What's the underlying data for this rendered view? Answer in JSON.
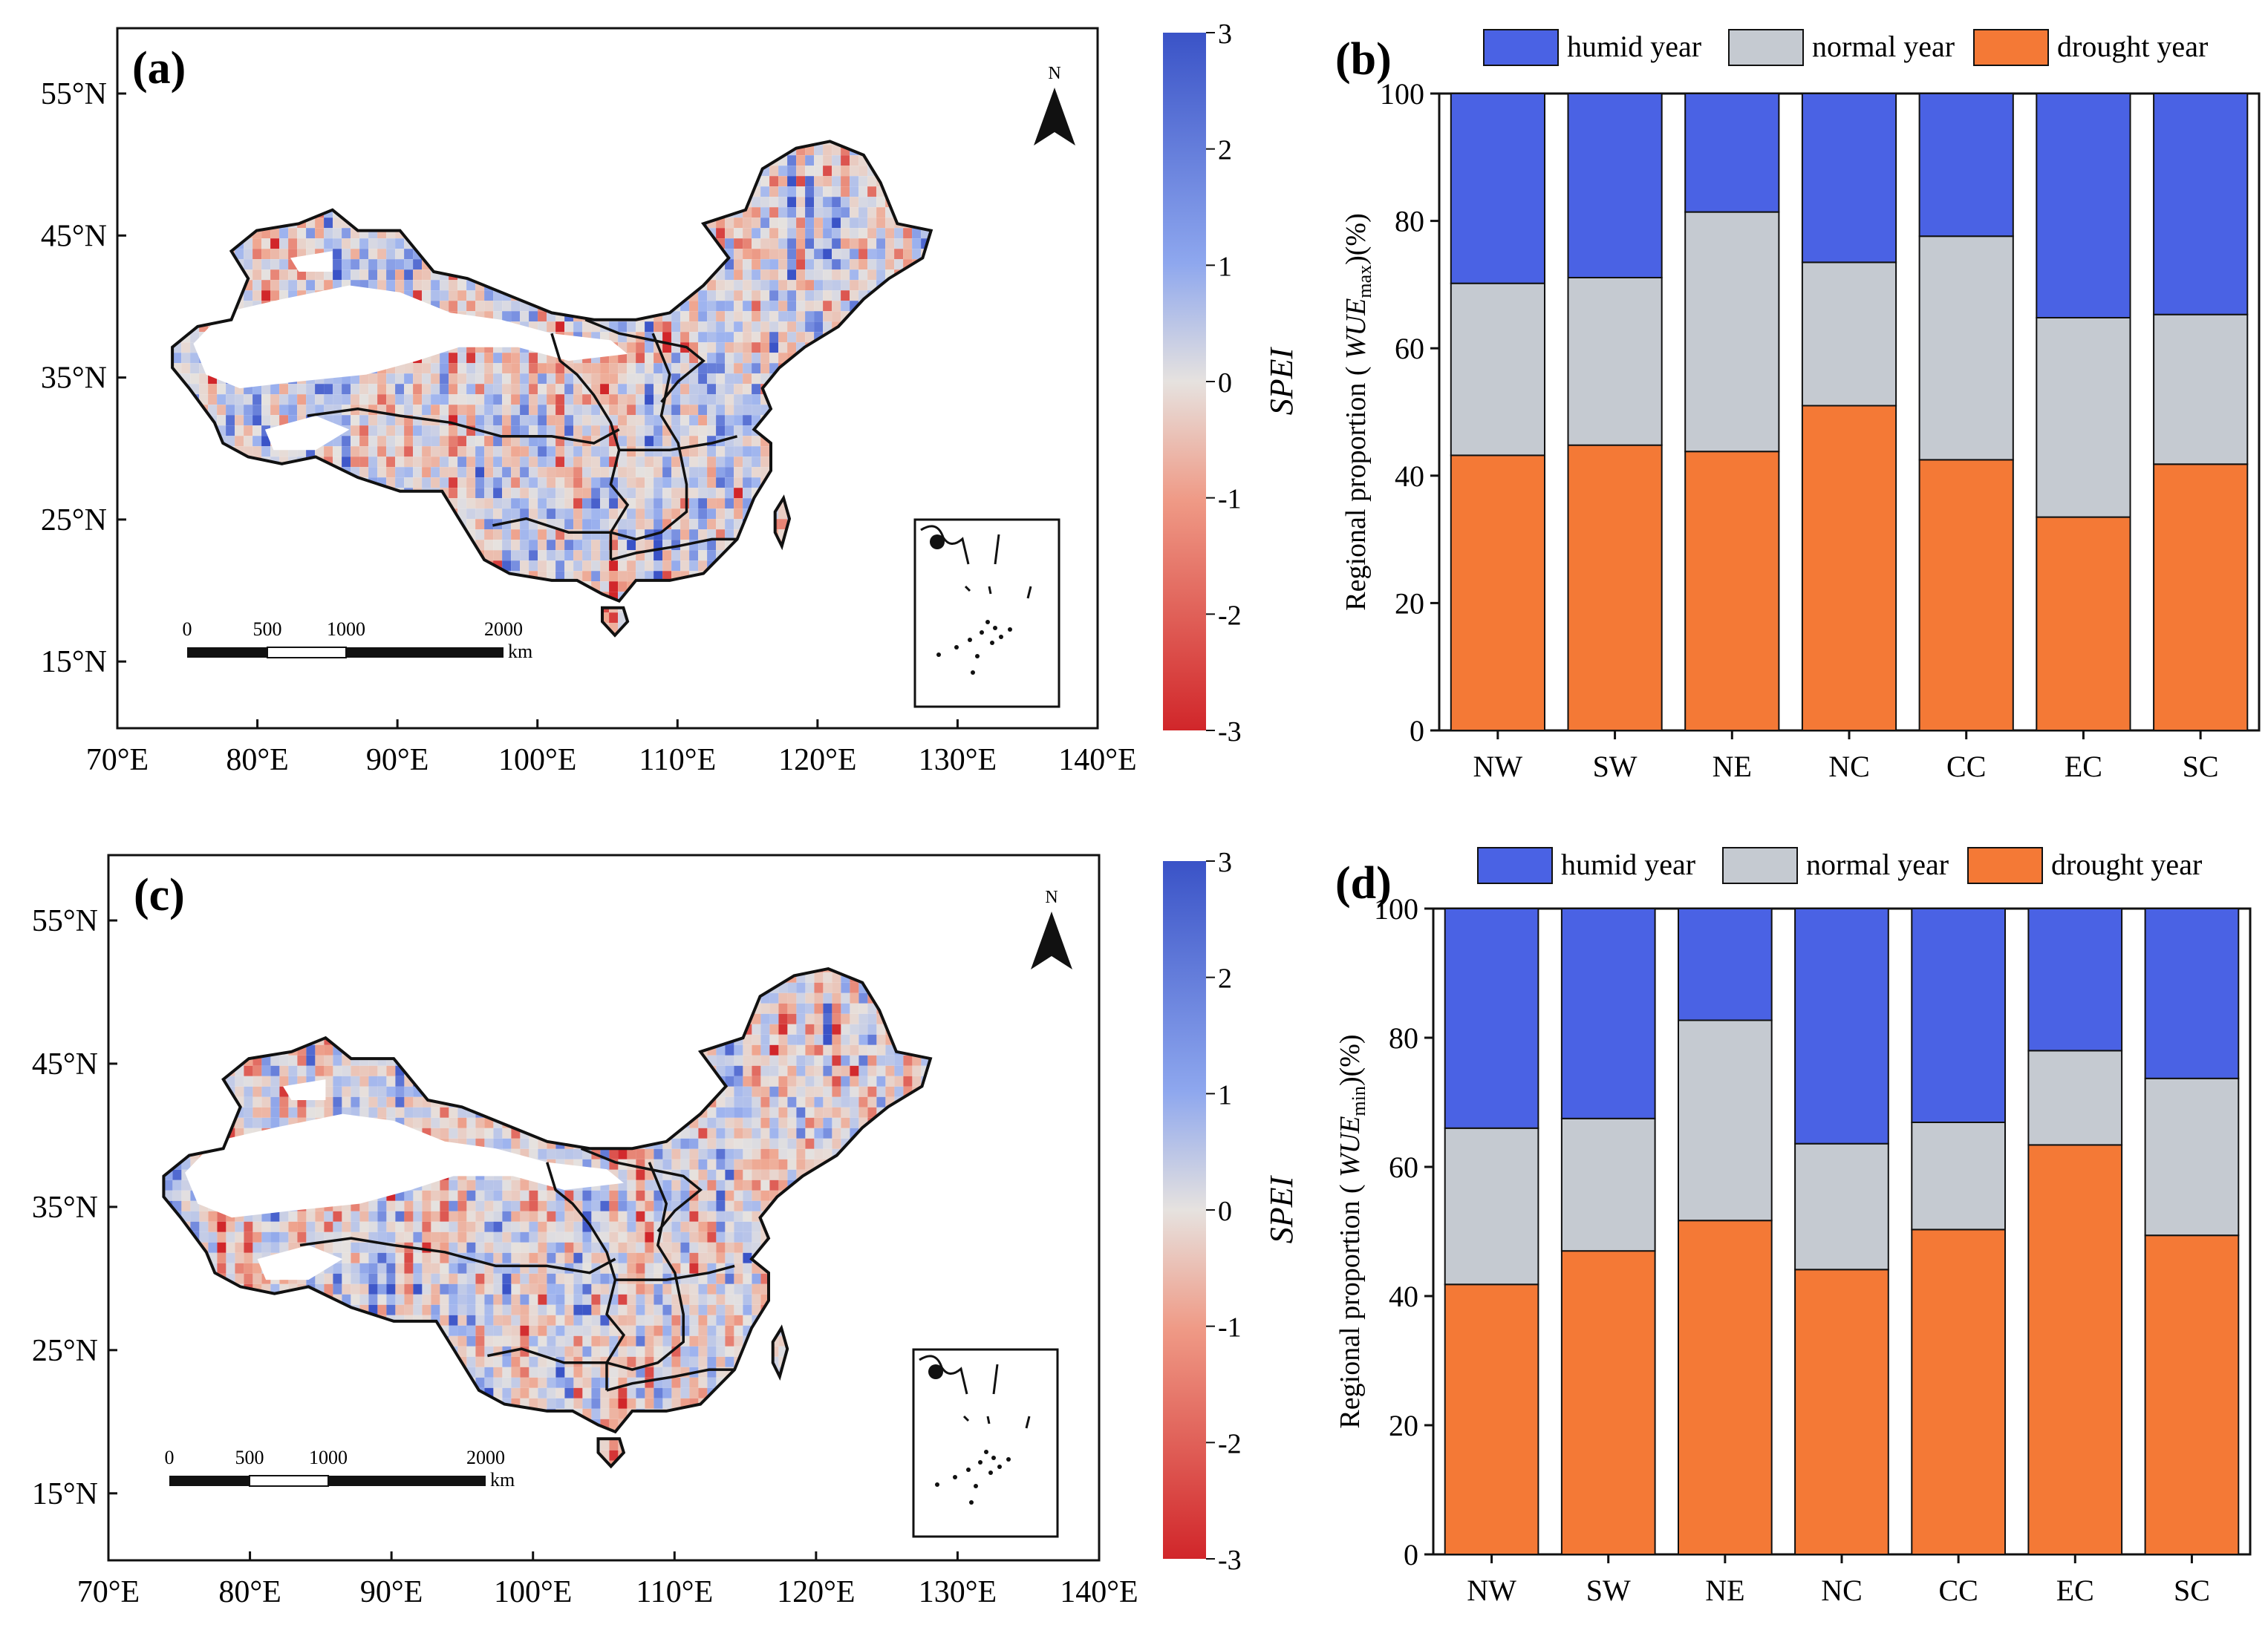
{
  "colors": {
    "humid": "#4a62e4",
    "normal": "#c5cad1",
    "drought": "#f47936",
    "spei_top": "#3a53c7",
    "spei_mid": "#e6e2df",
    "spei_bottom": "#d1262a",
    "china_fill": "#ffffff",
    "outline": "#111111"
  },
  "maps": [
    {
      "label": "(a)",
      "lat_ticks": [
        "55°N",
        "45°N",
        "35°N",
        "25°N",
        "15°N"
      ],
      "lon_ticks": [
        "70°E",
        "80°E",
        "90°E",
        "100°E",
        "110°E",
        "120°E",
        "130°E",
        "140°E"
      ],
      "north": "N",
      "scalebar": {
        "labels": [
          "0",
          "500",
          "1000",
          "2000"
        ],
        "unit": "km"
      },
      "colorbar": {
        "title": "SPEI",
        "ticks": [
          "3",
          "2",
          "1",
          "0",
          "-1",
          "-2",
          "-3"
        ]
      },
      "seed": 11,
      "humid_bias": 0.05
    },
    {
      "label": "(c)",
      "lat_ticks": [
        "55°N",
        "45°N",
        "35°N",
        "25°N",
        "15°N"
      ],
      "lon_ticks": [
        "70°E",
        "80°E",
        "90°E",
        "100°E",
        "110°E",
        "120°E",
        "130°E",
        "140°E"
      ],
      "north": "N",
      "scalebar": {
        "labels": [
          "0",
          "500",
          "1000",
          "2000"
        ],
        "unit": "km"
      },
      "colorbar": {
        "title": "SPEI",
        "ticks": [
          "3",
          "2",
          "1",
          "0",
          "-1",
          "-2",
          "-3"
        ]
      },
      "seed": 29,
      "humid_bias": -0.02
    }
  ],
  "chart_data": [
    {
      "type": "bar",
      "stacked": true,
      "label": "(b)",
      "ylabel_prefix": "Regional proportion ( ",
      "ylabel_var": "WUE",
      "ylabel_sub": "max",
      "ylabel_suffix": ")(%)",
      "ylim": [
        0,
        100
      ],
      "yticks": [
        0,
        20,
        40,
        60,
        80,
        100
      ],
      "categories": [
        "NW",
        "SW",
        "NE",
        "NC",
        "CC",
        "EC",
        "SC"
      ],
      "legend": [
        "humid year",
        "normal year",
        "drought year"
      ],
      "series": [
        {
          "name": "drought year",
          "values": [
            43.2,
            44.8,
            43.8,
            51.0,
            42.5,
            33.5,
            41.8
          ]
        },
        {
          "name": "normal year",
          "values": [
            27.0,
            26.3,
            37.6,
            22.5,
            35.1,
            31.3,
            23.5
          ]
        },
        {
          "name": "humid year",
          "values": [
            29.8,
            28.9,
            18.6,
            26.5,
            22.4,
            35.2,
            34.7
          ]
        }
      ]
    },
    {
      "type": "bar",
      "stacked": true,
      "label": "(d)",
      "ylabel_prefix": "Regional proportion ( ",
      "ylabel_var": "WUE",
      "ylabel_sub": "min",
      "ylabel_suffix": ")(%)",
      "ylim": [
        0,
        100
      ],
      "yticks": [
        0,
        20,
        40,
        60,
        80,
        100
      ],
      "categories": [
        "NW",
        "SW",
        "NE",
        "NC",
        "CC",
        "EC",
        "SC"
      ],
      "legend": [
        "humid year",
        "normal year",
        "drought year"
      ],
      "series": [
        {
          "name": "drought year",
          "values": [
            41.8,
            47.0,
            51.7,
            44.1,
            50.3,
            63.4,
            49.4
          ]
        },
        {
          "name": "normal year",
          "values": [
            24.2,
            20.5,
            31.0,
            19.5,
            16.6,
            14.6,
            24.3
          ]
        },
        {
          "name": "humid year",
          "values": [
            34.0,
            32.5,
            17.3,
            36.4,
            33.1,
            22.0,
            26.3
          ]
        }
      ]
    }
  ]
}
